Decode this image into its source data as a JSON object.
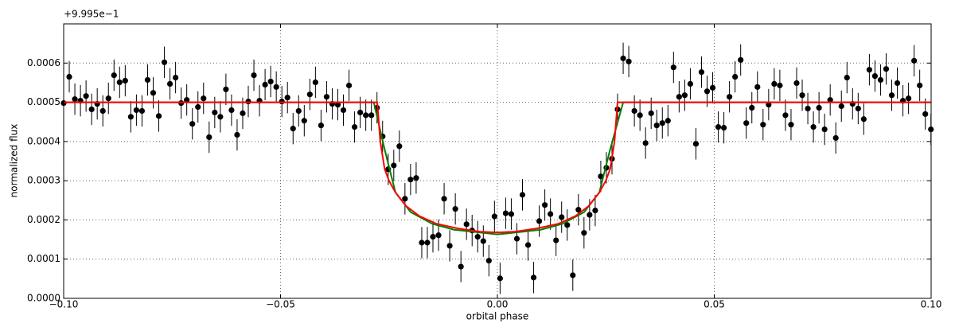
{
  "chart_data": {
    "type": "scatter",
    "offset_text": "+9.995e−1",
    "xlabel": "orbital phase",
    "ylabel": "normalized flux",
    "xlim": [
      -0.1,
      0.1
    ],
    "xticks": [
      {
        "value": -0.1,
        "label": "−0.10"
      },
      {
        "value": -0.05,
        "label": "−0.05"
      },
      {
        "value": 0,
        "label": "0.00"
      },
      0.05,
      {
        "value": 0.1,
        "label": "0.10"
      }
    ],
    "ylim": [
      0,
      0.0007
    ],
    "yticks": [
      {
        "value": 0,
        "label": "0.0000"
      },
      0.0001,
      0.0002,
      0.0003,
      0.0004,
      0.0005,
      0.0006
    ],
    "grid": true,
    "series": [
      {
        "style": "errorbar",
        "color": "#000000",
        "yerr": 4e-05,
        "x": [
          -0.1,
          -0.09871,
          -0.09742,
          -0.09613,
          -0.09484,
          -0.09355,
          -0.09226,
          -0.09097,
          -0.08968,
          -0.08839,
          -0.0871,
          -0.08581,
          -0.08452,
          -0.08323,
          -0.08194,
          -0.08065,
          -0.07936,
          -0.07807,
          -0.07678,
          -0.07549,
          -0.0742,
          -0.07291,
          -0.07162,
          -0.07033,
          -0.06904,
          -0.06775,
          -0.06646,
          -0.06517,
          -0.06388,
          -0.06259,
          -0.0613,
          -0.06001,
          -0.05872,
          -0.05743,
          -0.05614,
          -0.05485,
          -0.05356,
          -0.05227,
          -0.05098,
          -0.04969,
          -0.0484,
          -0.04711,
          -0.04582,
          -0.04453,
          -0.04324,
          -0.04195,
          -0.04066,
          -0.03937,
          -0.03808,
          -0.03679,
          -0.0355,
          -0.03421,
          -0.03292,
          -0.03163,
          -0.03034,
          -0.02905,
          -0.02776,
          -0.02647,
          -0.02518,
          -0.02389,
          -0.0226,
          -0.02131,
          -0.02002,
          -0.01873,
          -0.01744,
          -0.01615,
          -0.01486,
          -0.01357,
          -0.01228,
          -0.01099,
          -0.0097,
          -0.00841,
          -0.00712,
          -0.00583,
          -0.00454,
          -0.00325,
          -0.00196,
          -0.00067,
          0.00062,
          0.00191,
          0.0032,
          0.00449,
          0.00578,
          0.00707,
          0.00836,
          0.00965,
          0.01094,
          0.01223,
          0.01352,
          0.01481,
          0.0161,
          0.01739,
          0.01868,
          0.01997,
          0.02126,
          0.02255,
          0.02384,
          0.02513,
          0.02642,
          0.02771,
          0.029,
          0.03029,
          0.03158,
          0.03287,
          0.03416,
          0.03545,
          0.03674,
          0.03803,
          0.03932,
          0.04061,
          0.0419,
          0.04319,
          0.04448,
          0.04577,
          0.04706,
          0.04835,
          0.04964,
          0.05093,
          0.05222,
          0.05351,
          0.0548,
          0.05609,
          0.05738,
          0.05867,
          0.05996,
          0.06125,
          0.06254,
          0.06383,
          0.06512,
          0.06641,
          0.0677,
          0.06899,
          0.07028,
          0.07157,
          0.07286,
          0.07415,
          0.07544,
          0.07673,
          0.07802,
          0.07931,
          0.0806,
          0.08189,
          0.08318,
          0.08447,
          0.08576,
          0.08705,
          0.08834,
          0.08963,
          0.09092,
          0.09221,
          0.0935,
          0.09479,
          0.09608,
          0.09737,
          0.09866,
          0.09995
        ],
        "values": [
          0.000498,
          0.000565,
          0.000508,
          0.000504,
          0.000516,
          0.000482,
          0.000496,
          0.000478,
          0.00051,
          0.000569,
          0.000551,
          0.000555,
          0.000463,
          0.00048,
          0.000478,
          0.000557,
          0.000524,
          0.000465,
          0.000602,
          0.000547,
          0.000563,
          0.000498,
          0.000506,
          0.000445,
          0.000488,
          0.00051,
          0.000411,
          0.000474,
          0.000463,
          0.000533,
          0.00048,
          0.000417,
          0.000472,
          0.000502,
          0.000569,
          0.000504,
          0.000545,
          0.000553,
          0.000539,
          0.000502,
          0.000512,
          0.000433,
          0.000478,
          0.000453,
          0.00052,
          0.000551,
          0.000441,
          0.000514,
          0.000496,
          0.000494,
          0.00048,
          0.000543,
          0.000437,
          0.000474,
          0.000467,
          0.000467,
          0.000486,
          0.000413,
          0.000329,
          0.000339,
          0.000388,
          0.000254,
          0.000303,
          0.000307,
          0.000142,
          0.000142,
          0.000157,
          0.000161,
          0.000254,
          0.000134,
          0.000228,
          8.1e-05,
          0.000189,
          0.000173,
          0.000157,
          0.000146,
          9.6e-05,
          0.000209,
          5.1e-05,
          0.000217,
          0.000215,
          0.000152,
          0.000264,
          0.000136,
          5.3e-05,
          0.000197,
          0.000238,
          0.000215,
          0.000148,
          0.000207,
          0.000187,
          5.9e-05,
          0.000226,
          0.000167,
          0.000213,
          0.000224,
          0.000311,
          0.000333,
          0.000356,
          0.000482,
          0.000612,
          0.000604,
          0.000478,
          0.000467,
          0.000396,
          0.000472,
          0.000441,
          0.000447,
          0.000453,
          0.000589,
          0.000514,
          0.000518,
          0.000547,
          0.000394,
          0.000577,
          0.000528,
          0.000537,
          0.000437,
          0.000435,
          0.000514,
          0.000565,
          0.000608,
          0.000447,
          0.000486,
          0.000539,
          0.000443,
          0.000494,
          0.000547,
          0.000543,
          0.000467,
          0.000443,
          0.000549,
          0.000518,
          0.000484,
          0.000437,
          0.000486,
          0.000431,
          0.000506,
          0.000409,
          0.00049,
          0.000563,
          0.000496,
          0.000484,
          0.000457,
          0.000583,
          0.000567,
          0.000557,
          0.000585,
          0.000518,
          0.000549,
          0.000504,
          0.00051,
          0.000606,
          0.000543,
          0.00047,
          0.000431
        ]
      },
      {
        "style": "line",
        "color": "#008000",
        "x": [
          -0.1,
          -0.0285,
          -0.026,
          -0.0235,
          -0.02,
          -0.015,
          -0.01,
          0,
          0.01,
          0.015,
          0.02,
          0.0235,
          0.026,
          0.029,
          0.1
        ],
        "values": [
          0.0005,
          0.0005,
          0.00038,
          0.00027,
          0.00022,
          0.00019,
          0.000175,
          0.000163,
          0.000175,
          0.00019,
          0.00022,
          0.00027,
          0.00038,
          0.0005,
          0.0005
        ]
      },
      {
        "style": "line",
        "color": "#ff0000",
        "x": [
          -0.1,
          -0.0277,
          -0.027,
          -0.026,
          -0.025,
          -0.0235,
          -0.021,
          -0.018,
          -0.014,
          -0.009,
          -0.004,
          0,
          0.004,
          0.009,
          0.014,
          0.018,
          0.021,
          0.0235,
          0.025,
          0.026,
          0.027,
          0.0277,
          0.1
        ],
        "values": [
          0.0005,
          0.0005,
          0.0004,
          0.00033,
          0.0003,
          0.00027,
          0.000235,
          0.00021,
          0.00019,
          0.000178,
          0.00017,
          0.000168,
          0.00017,
          0.000178,
          0.00019,
          0.00021,
          0.000235,
          0.00027,
          0.0003,
          0.00033,
          0.0004,
          0.0005,
          0.0005
        ]
      }
    ]
  }
}
